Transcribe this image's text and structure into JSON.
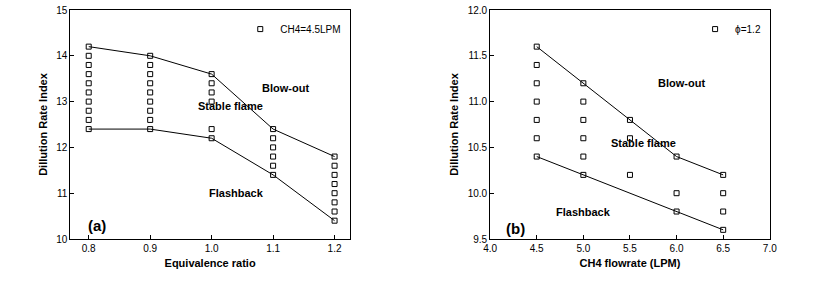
{
  "chart_data": [
    {
      "type": "scatter",
      "x_label": "Equivalence ratio",
      "y_label": "Dillution Rate Index",
      "xlim": [
        0.77,
        1.225
      ],
      "ylim": [
        10,
        15
      ],
      "xticks": [
        0.8,
        0.9,
        {
          "value": 1,
          "label": "1.0"
        },
        1.1,
        1.2
      ],
      "yticks": [
        10,
        11,
        12,
        13,
        14,
        15
      ],
      "grid": false,
      "legend": "top right",
      "series": [
        {
          "name": "CH4=4.5LPM",
          "type": "scatter",
          "marker": "square-open",
          "color": "#000000",
          "x": [
            0.8,
            0.8,
            0.8,
            0.8,
            0.8,
            0.8,
            0.8,
            0.8,
            0.8,
            0.8,
            0.9,
            0.9,
            0.9,
            0.9,
            0.9,
            0.9,
            0.9,
            0.9,
            0.9,
            1.0,
            1.0,
            1.0,
            1.0,
            1.0,
            1.0,
            1.1,
            1.1,
            1.1,
            1.1,
            1.1,
            1.1,
            1.2,
            1.2,
            1.2,
            1.2,
            1.2,
            1.2,
            1.2,
            1.2
          ],
          "values": [
            12.4,
            12.6,
            12.8,
            13.0,
            13.2,
            13.4,
            13.6,
            13.8,
            14.0,
            14.2,
            12.4,
            12.6,
            12.8,
            13.0,
            13.2,
            13.4,
            13.6,
            13.8,
            14.0,
            12.2,
            12.4,
            13.0,
            13.2,
            13.4,
            13.6,
            11.4,
            11.6,
            11.8,
            12.0,
            12.2,
            12.4,
            10.4,
            10.6,
            10.8,
            11.0,
            11.2,
            11.4,
            11.6,
            11.8
          ]
        },
        {
          "type": "line",
          "color": "#000000",
          "line_style": "solid",
          "x": [
            0.8,
            0.9,
            1.0,
            1.1,
            1.2
          ],
          "values": [
            14.2,
            14.0,
            13.6,
            12.4,
            11.8
          ]
        },
        {
          "type": "line",
          "color": "#000000",
          "line_style": "solid",
          "x": [
            0.8,
            0.9,
            1.0,
            1.1,
            1.2
          ],
          "values": [
            12.4,
            12.4,
            12.2,
            11.4,
            10.4
          ]
        }
      ],
      "annotations": [
        {
          "text": "Blow-out",
          "x": 1.12,
          "y": 13.3
        },
        {
          "text": "Stable flame",
          "x": 1.03,
          "y": 12.9
        },
        {
          "text": "Flashback",
          "x": 1.04,
          "y": 11.0
        },
        {
          "text": "(a)",
          "x": 0.795,
          "y": 10.3
        }
      ]
    },
    {
      "type": "scatter",
      "x_label": "CH4 flowrate (LPM)",
      "y_label": "Dillution Rate Index",
      "xlim": [
        4.0,
        7.0
      ],
      "ylim": [
        9.5,
        12.0
      ],
      "xticks": [
        {
          "value": 4,
          "label": "4.0"
        },
        4.5,
        {
          "value": 5,
          "label": "5.0"
        },
        5.5,
        {
          "value": 6,
          "label": "6.0"
        },
        6.5,
        {
          "value": 7,
          "label": "7.0"
        }
      ],
      "yticks": [
        9.5,
        {
          "value": 10,
          "label": "10.0"
        },
        10.5,
        {
          "value": 11,
          "label": "11.0"
        },
        11.5,
        {
          "value": 12,
          "label": "12.0"
        }
      ],
      "grid": false,
      "legend": "top right",
      "series": [
        {
          "name": "ϕ=1.2",
          "type": "scatter",
          "marker": "square-open",
          "color": "#000000",
          "x": [
            4.5,
            4.5,
            4.5,
            4.5,
            4.5,
            4.5,
            4.5,
            5.0,
            5.0,
            5.0,
            5.0,
            5.0,
            5.0,
            5.5,
            5.5,
            5.5,
            6.0,
            6.0,
            6.0,
            6.5,
            6.5,
            6.5,
            6.5
          ],
          "values": [
            10.4,
            10.6,
            10.8,
            11.0,
            11.2,
            11.4,
            11.6,
            10.2,
            10.4,
            10.6,
            10.8,
            11.0,
            11.2,
            10.2,
            10.6,
            10.8,
            9.8,
            10.0,
            10.4,
            9.6,
            9.8,
            10.0,
            10.2
          ]
        },
        {
          "type": "line",
          "color": "#000000",
          "line_style": "solid",
          "x": [
            4.5,
            5.0,
            5.5,
            6.0,
            6.5
          ],
          "values": [
            11.6,
            11.2,
            10.8,
            10.4,
            10.2
          ]
        },
        {
          "type": "line",
          "color": "#000000",
          "line_style": "solid",
          "x": [
            4.5,
            5.0,
            5.5,
            6.0,
            6.5
          ],
          "values": [
            10.4,
            10.2,
            10.0,
            9.8,
            9.6
          ]
        }
      ],
      "annotations": [
        {
          "text": "Blow-out",
          "x": 6.05,
          "y": 11.2
        },
        {
          "text": "Stable flame",
          "x": 5.65,
          "y": 10.55
        },
        {
          "text": "Flashback",
          "x": 5.0,
          "y": 9.8
        },
        {
          "text": "(b)",
          "x": 4.15,
          "y": 9.62
        }
      ]
    }
  ]
}
